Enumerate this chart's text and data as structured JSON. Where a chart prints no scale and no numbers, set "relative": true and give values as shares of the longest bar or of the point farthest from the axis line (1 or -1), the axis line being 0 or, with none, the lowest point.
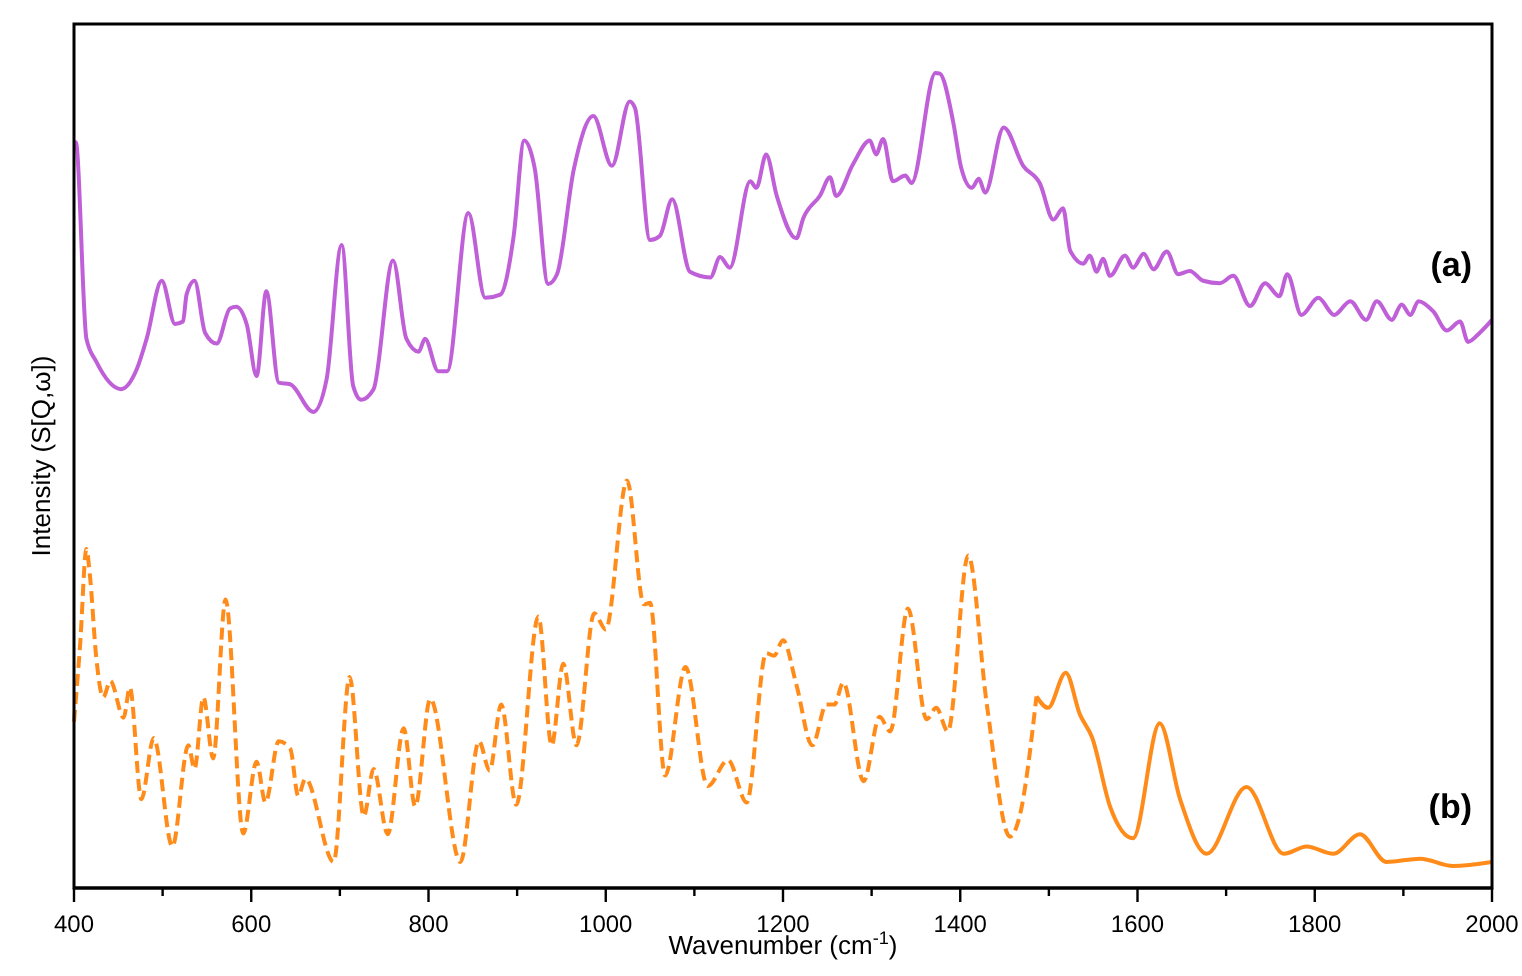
{
  "chart_data": {
    "type": "line",
    "relative": true,
    "xlabel": "Wavenumber (cm$^{-1}$)",
    "ylabel": "Intensity (S[Q,ω])",
    "xlim": [
      400,
      2000
    ],
    "xticks": [
      400,
      {
        "value": 500,
        "label": null
      },
      600,
      {
        "value": 700,
        "label": null
      },
      800,
      {
        "value": 900,
        "label": null
      },
      1000,
      {
        "value": 1100,
        "label": null
      },
      1200,
      {
        "value": 1300,
        "label": null
      },
      1400,
      {
        "value": 1500,
        "label": null
      },
      1600,
      {
        "value": 1700,
        "label": null
      },
      1800,
      {
        "value": 1900,
        "label": null
      },
      2000
    ],
    "grid": false,
    "marker": "none",
    "series": [
      {
        "name": "(a)",
        "color": "#c060d8",
        "line_style": "solid",
        "x": [
          400,
          402,
          414,
          425,
          453,
          471,
          482,
          499,
          514,
          523,
          527,
          536,
          548,
          561,
          576,
          583,
          595,
          606,
          617,
          631,
          644,
          670,
          685,
          702,
          715,
          724,
          738,
          760,
          775,
          789,
          796,
          811,
          821,
          845,
          864,
          881,
          896,
          908,
          920,
          935,
          945,
          964,
          986,
          1007,
          1027,
          1033,
          1050,
          1061,
          1075,
          1095,
          1118,
          1129,
          1140,
          1163,
          1170,
          1181,
          1193,
          1215,
          1223,
          1242,
          1253,
          1260,
          1279,
          1298,
          1305,
          1313,
          1324,
          1338,
          1345,
          1372,
          1377,
          1392,
          1401,
          1413,
          1421,
          1428,
          1449,
          1471,
          1490,
          1505,
          1516,
          1524,
          1539,
          1546,
          1554,
          1561,
          1569,
          1586,
          1595,
          1607,
          1618,
          1633,
          1646,
          1659,
          1674,
          1693,
          1708,
          1727,
          1744,
          1760,
          1769,
          1785,
          1804,
          1822,
          1840,
          1858,
          1870,
          1887,
          1898,
          1908,
          1917,
          1934,
          1949,
          1964,
          1973,
          1986,
          2000
        ],
        "values": [
          0.915,
          0.915,
          0.674,
          0.646,
          0.612,
          0.637,
          0.674,
          0.745,
          0.692,
          0.695,
          0.728,
          0.745,
          0.681,
          0.668,
          0.711,
          0.713,
          0.691,
          0.628,
          0.732,
          0.62,
          0.618,
          0.584,
          0.624,
          0.789,
          0.616,
          0.599,
          0.612,
          0.77,
          0.674,
          0.658,
          0.674,
          0.634,
          0.634,
          0.828,
          0.724,
          0.728,
          0.799,
          0.917,
          0.882,
          0.741,
          0.753,
          0.882,
          0.947,
          0.886,
          0.965,
          0.957,
          0.795,
          0.8,
          0.845,
          0.756,
          0.749,
          0.774,
          0.761,
          0.867,
          0.859,
          0.9,
          0.849,
          0.797,
          0.822,
          0.85,
          0.872,
          0.849,
          0.888,
          0.917,
          0.9,
          0.919,
          0.867,
          0.874,
          0.865,
          1,
          0.999,
          0.94,
          0.884,
          0.859,
          0.87,
          0.853,
          0.933,
          0.886,
          0.864,
          0.82,
          0.834,
          0.782,
          0.766,
          0.776,
          0.756,
          0.772,
          0.751,
          0.776,
          0.761,
          0.778,
          0.759,
          0.781,
          0.753,
          0.757,
          0.745,
          0.742,
          0.751,
          0.714,
          0.742,
          0.726,
          0.753,
          0.703,
          0.724,
          0.703,
          0.72,
          0.697,
          0.72,
          0.697,
          0.716,
          0.703,
          0.72,
          0.707,
          0.684,
          0.695,
          0.67,
          0.681,
          0.697
        ]
      },
      {
        "color": "#ff8c1a",
        "line_style": "dashed",
        "x": [
          400,
          407,
          414,
          418,
          425,
          433,
          441,
          456,
          463,
          476,
          490,
          511,
          529,
          536,
          546,
          557,
          571,
          591,
          606,
          616,
          631,
          644,
          653,
          661,
          693,
          711,
          727,
          738,
          754,
          772,
          785,
          802,
          836,
          857,
          869,
          882,
          899,
          924,
          939,
          952,
          967,
          987,
          1000,
          1024,
          1043,
          1050,
          1067,
          1090,
          1115,
          1138,
          1159,
          1181,
          1190,
          1200,
          1215,
          1233,
          1249,
          1258,
          1268,
          1291,
          1309,
          1321,
          1341,
          1362,
          1373,
          1386,
          1409,
          1430,
          1456,
          1467,
          1486
        ],
        "values": [
          0.204,
          0.3,
          0.416,
          0.383,
          0.284,
          0.234,
          0.254,
          0.209,
          0.246,
          0.109,
          0.184,
          0.051,
          0.175,
          0.146,
          0.234,
          0.159,
          0.354,
          0.067,
          0.155,
          0.105,
          0.18,
          0.171,
          0.113,
          0.134,
          0.032,
          0.259,
          0.088,
          0.146,
          0.066,
          0.196,
          0.1,
          0.232,
          0.032,
          0.18,
          0.144,
          0.225,
          0.102,
          0.333,
          0.175,
          0.275,
          0.175,
          0.337,
          0.317,
          0.5,
          0.348,
          0.35,
          0.138,
          0.271,
          0.125,
          0.157,
          0.105,
          0.288,
          0.285,
          0.304,
          0.25,
          0.175,
          0.225,
          0.225,
          0.252,
          0.131,
          0.21,
          0.192,
          0.343,
          0.207,
          0.221,
          0.192,
          0.408,
          0.225,
          0.063,
          0.088,
          0.235
        ]
      },
      {
        "name": "(b)",
        "color": "#ff8c1a",
        "line_style": "solid",
        "x": [
          1486,
          1499,
          1519,
          1535,
          1549,
          1569,
          1595,
          1625,
          1648,
          1678,
          1723,
          1765,
          1791,
          1821,
          1851,
          1881,
          1919,
          1956,
          2000
        ],
        "values": [
          0.235,
          0.221,
          0.264,
          0.213,
          0.184,
          0.1,
          0.061,
          0.202,
          0.109,
          0.042,
          0.124,
          0.042,
          0.051,
          0.042,
          0.066,
          0.032,
          0.036,
          0.027,
          0.032
        ]
      }
    ]
  }
}
